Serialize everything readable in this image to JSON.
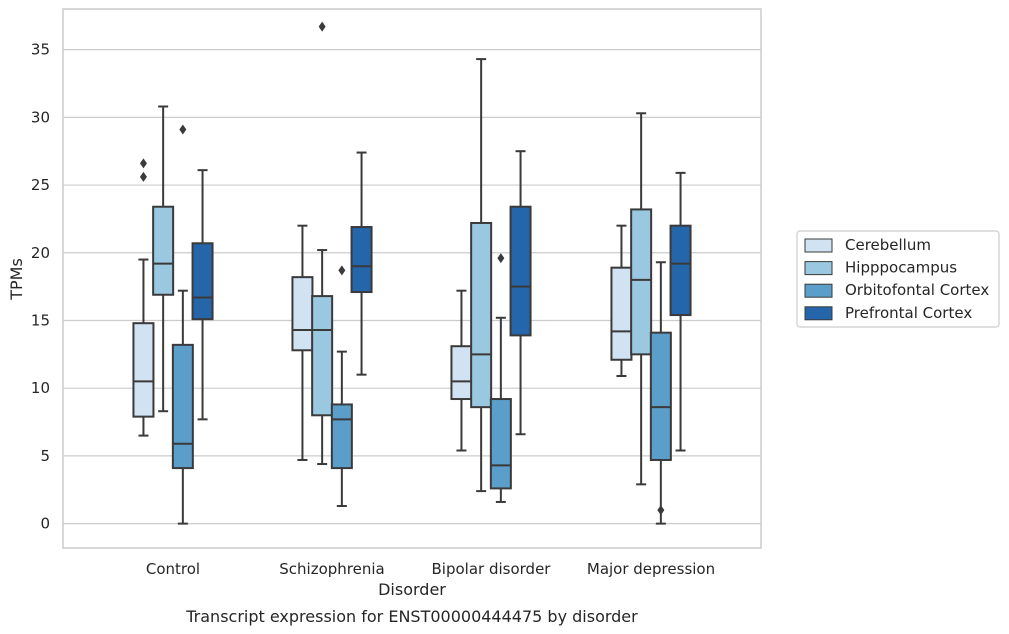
{
  "chart_data": {
    "type": "box",
    "title": "",
    "caption": "Transcript expression for ENST00000444475 by disorder",
    "xlabel": "Disorder",
    "ylabel": "TPMs",
    "ylim": [
      -1.8,
      38.0
    ],
    "yticks": [
      0,
      5,
      10,
      15,
      20,
      25,
      30,
      35
    ],
    "grid": "horizontal",
    "legend_position": "right",
    "categories": [
      "Control",
      "Schizophrenia",
      "Bipolar disorder",
      "Major depression"
    ],
    "series": [
      {
        "name": "Cerebellum",
        "color": "#d1e2f2",
        "boxes": [
          {
            "whisker_low": 6.5,
            "q1": 7.9,
            "median": 10.5,
            "q3": 14.8,
            "whisker_high": 19.5,
            "outliers": [
              25.6,
              26.6
            ]
          },
          {
            "whisker_low": 4.7,
            "q1": 12.8,
            "median": 14.3,
            "q3": 18.2,
            "whisker_high": 22.0,
            "outliers": []
          },
          {
            "whisker_low": 5.4,
            "q1": 9.2,
            "median": 10.5,
            "q3": 13.1,
            "whisker_high": 17.2,
            "outliers": []
          },
          {
            "whisker_low": 10.9,
            "q1": 12.1,
            "median": 14.2,
            "q3": 18.9,
            "whisker_high": 22.0,
            "outliers": []
          }
        ]
      },
      {
        "name": "Hipppocampus",
        "color": "#9ac8e0",
        "boxes": [
          {
            "whisker_low": 8.3,
            "q1": 16.9,
            "median": 19.2,
            "q3": 23.4,
            "whisker_high": 30.8,
            "outliers": []
          },
          {
            "whisker_low": 4.4,
            "q1": 8.0,
            "median": 14.3,
            "q3": 16.8,
            "whisker_high": 20.2,
            "outliers": [
              36.7
            ]
          },
          {
            "whisker_low": 2.4,
            "q1": 8.6,
            "median": 12.5,
            "q3": 22.2,
            "whisker_high": 34.3,
            "outliers": []
          },
          {
            "whisker_low": 2.9,
            "q1": 12.5,
            "median": 18.0,
            "q3": 23.2,
            "whisker_high": 30.3,
            "outliers": []
          }
        ]
      },
      {
        "name": "Orbitofontal Cortex",
        "color": "#5a9ec9",
        "boxes": [
          {
            "whisker_low": 0.0,
            "q1": 4.1,
            "median": 5.9,
            "q3": 13.2,
            "whisker_high": 17.2,
            "outliers": [
              29.1
            ]
          },
          {
            "whisker_low": 1.3,
            "q1": 4.1,
            "median": 7.7,
            "q3": 8.8,
            "whisker_high": 12.7,
            "outliers": [
              18.7
            ]
          },
          {
            "whisker_low": 1.6,
            "q1": 2.6,
            "median": 4.3,
            "q3": 9.2,
            "whisker_high": 15.2,
            "outliers": [
              19.6
            ]
          },
          {
            "whisker_low": 0.0,
            "q1": 4.7,
            "median": 8.6,
            "q3": 14.1,
            "whisker_high": 19.3,
            "outliers": [
              1.0
            ]
          }
        ]
      },
      {
        "name": "Prefrontal Cortex",
        "color": "#2565a9",
        "boxes": [
          {
            "whisker_low": 7.7,
            "q1": 15.1,
            "median": 16.7,
            "q3": 20.7,
            "whisker_high": 26.1,
            "outliers": []
          },
          {
            "whisker_low": 11.0,
            "q1": 17.1,
            "median": 19.0,
            "q3": 21.9,
            "whisker_high": 27.4,
            "outliers": []
          },
          {
            "whisker_low": 6.6,
            "q1": 13.9,
            "median": 17.5,
            "q3": 23.4,
            "whisker_high": 27.5,
            "outliers": []
          },
          {
            "whisker_low": 5.4,
            "q1": 15.4,
            "median": 19.2,
            "q3": 22.0,
            "whisker_high": 25.9,
            "outliers": []
          }
        ]
      }
    ]
  },
  "colors": {
    "line": "#3a3a3a",
    "grid": "#cccccc",
    "frame": "#cccccc"
  }
}
